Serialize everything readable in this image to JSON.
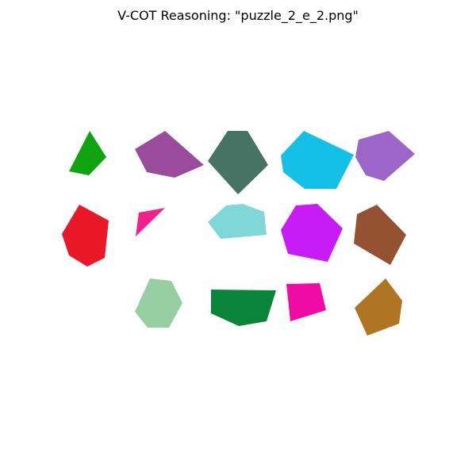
{
  "title": "V-COT Reasoning: \"puzzle_2_e_2.png\"",
  "pieces": [
    {
      "id": "r1c1",
      "color": "#0fa30f"
    },
    {
      "id": "r1c2",
      "color": "#9a4b9b"
    },
    {
      "id": "r1c3",
      "color": "#467364"
    },
    {
      "id": "r1c4",
      "color": "#15c0e6"
    },
    {
      "id": "r1c5",
      "color": "#9b66c7"
    },
    {
      "id": "r2c1",
      "color": "#ea1729"
    },
    {
      "id": "r2c2",
      "color": "#f2208c"
    },
    {
      "id": "r2c3",
      "color": "#7fd7d8"
    },
    {
      "id": "r2c4",
      "color": "#c81bf5"
    },
    {
      "id": "r2c5",
      "color": "#955232"
    },
    {
      "id": "r3c2",
      "color": "#97cea2"
    },
    {
      "id": "r3c3",
      "color": "#098438"
    },
    {
      "id": "r3c4",
      "color": "#ee0ca5"
    },
    {
      "id": "r3c5",
      "color": "#b07522"
    }
  ]
}
